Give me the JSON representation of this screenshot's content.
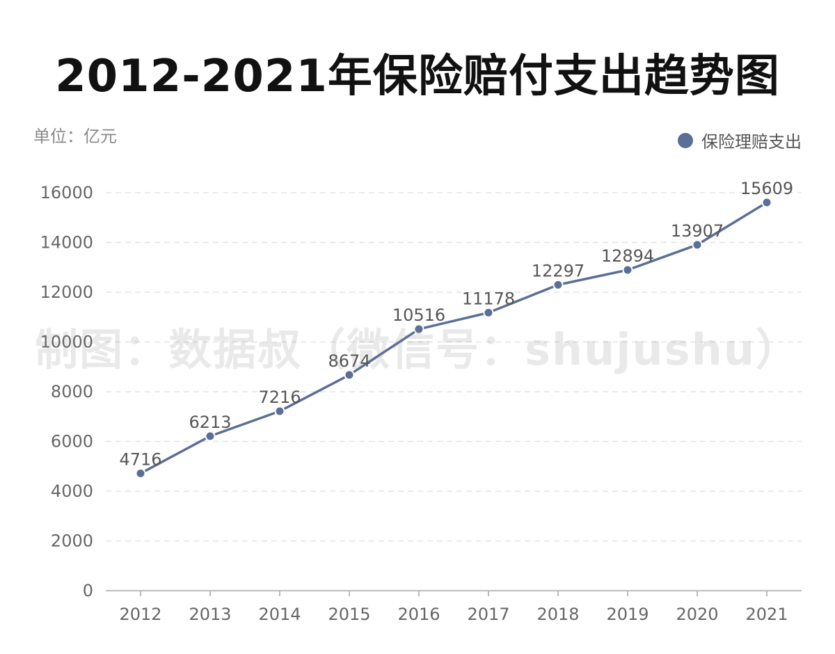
{
  "title": "2012-2021年保险赔付支出趋势图",
  "unit_label": "单位：亿元",
  "watermark": "制图：数据叔（微信号：shujushu）",
  "colors": {
    "series": "#5b6e96",
    "grid": "#e3e3e3",
    "axis": "#bbbbbb"
  },
  "chart_data": {
    "type": "line",
    "title": "2012-2021年保险赔付支出趋势图",
    "xlabel": "",
    "ylabel": "单位：亿元",
    "ylim": [
      0,
      16000
    ],
    "yticks": [
      0,
      2000,
      4000,
      6000,
      8000,
      10000,
      12000,
      14000,
      16000
    ],
    "grid": true,
    "legend_position": "top-right",
    "categories": [
      "2012",
      "2013",
      "2014",
      "2015",
      "2016",
      "2017",
      "2018",
      "2019",
      "2020",
      "2021"
    ],
    "series": [
      {
        "name": "保险理赔支出",
        "values": [
          4716,
          6213,
          7216,
          8674,
          10516,
          11178,
          12297,
          12894,
          13907,
          15609
        ]
      }
    ]
  }
}
